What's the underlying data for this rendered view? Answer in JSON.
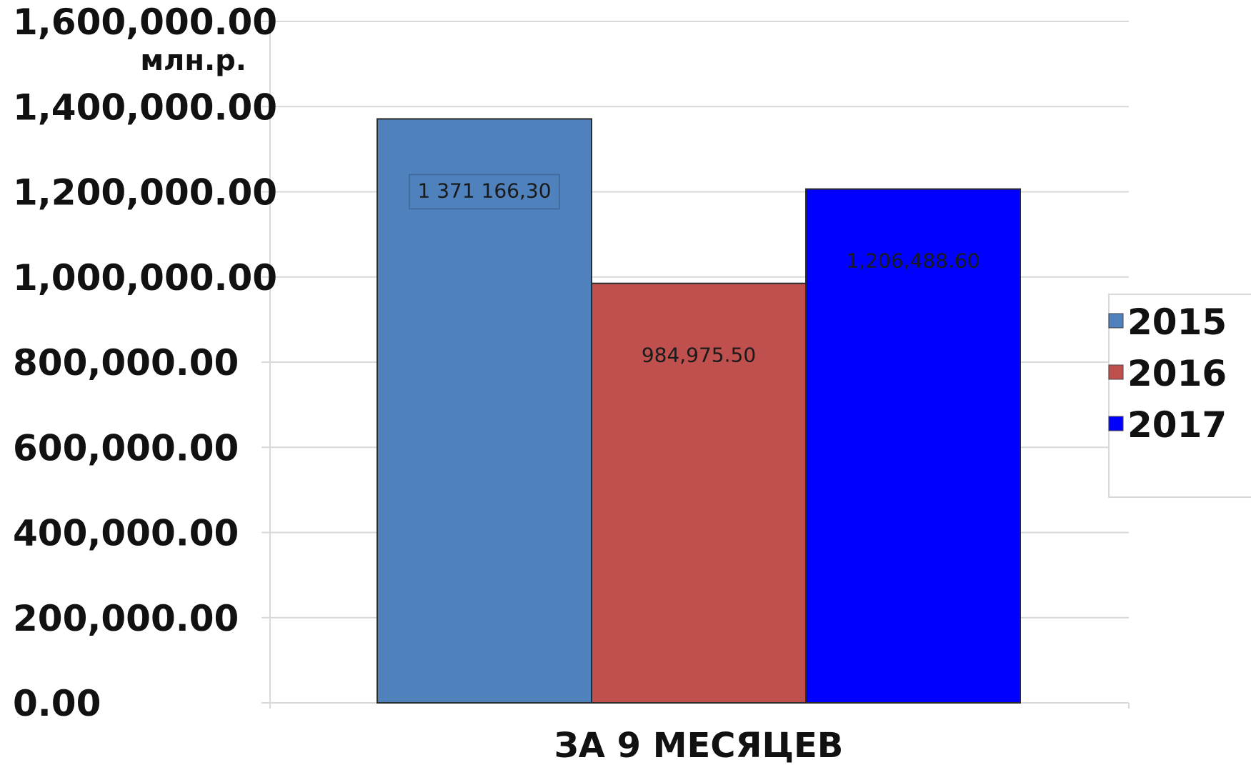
{
  "chart_data": {
    "type": "bar",
    "categories": [
      "ЗА 9 МЕСЯЦЕВ"
    ],
    "series": [
      {
        "name": "2015",
        "values": [
          1371166.3
        ],
        "label": "1 371 166,30",
        "color": "#4f81bd"
      },
      {
        "name": "2016",
        "values": [
          984975.5
        ],
        "label": "984,975.50",
        "color": "#c0504d"
      },
      {
        "name": "2017",
        "values": [
          1206488.6
        ],
        "label": "1,206,488.60",
        "color": "#0000ff"
      }
    ],
    "y_ticks": [
      {
        "value": 0,
        "label": "0.00"
      },
      {
        "value": 200000,
        "label": "200,000.00"
      },
      {
        "value": 400000,
        "label": "400,000.00"
      },
      {
        "value": 600000,
        "label": "600,000.00"
      },
      {
        "value": 800000,
        "label": "800,000.00"
      },
      {
        "value": 1000000,
        "label": "1,000,000.00"
      },
      {
        "value": 1200000,
        "label": "1,200,000.00"
      },
      {
        "value": 1400000,
        "label": "1,400,000.00"
      },
      {
        "value": 1600000,
        "label": "1,600,000.00"
      }
    ],
    "ylabel": "млн.р.",
    "xlabel": "",
    "ylim": [
      0,
      1600000
    ],
    "grid": true,
    "legend_position": "right"
  }
}
